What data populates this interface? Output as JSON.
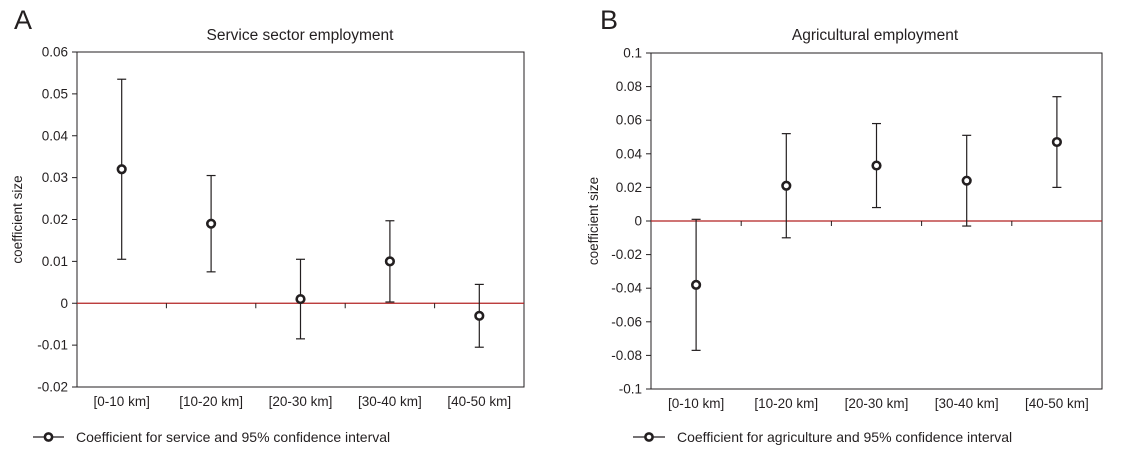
{
  "colors": {
    "zero_line": "#b22222",
    "ink": "#231f20"
  },
  "chart_data": [
    {
      "panel": "A",
      "type": "scatter",
      "title": "Service sector employment",
      "xlabel": "",
      "ylabel": "coefficient size",
      "categories": [
        "[0-10 km]",
        "[10-20 km]",
        "[20-30 km]",
        "[30-40 km]",
        "[40-50 km]"
      ],
      "ylim": [
        -0.02,
        0.06
      ],
      "yticks": [
        "0.06",
        "0.05",
        "0.04",
        "0.03",
        "0.02",
        "0.01",
        "0",
        "-0.01",
        "-0.02"
      ],
      "series": [
        {
          "name": "Coefficient for service and 95% confidence interval",
          "values": [
            0.032,
            0.019,
            0.001,
            0.01,
            -0.003
          ],
          "ci_low": [
            0.0105,
            0.0075,
            -0.0085,
            0.0003,
            -0.0105
          ],
          "ci_high": [
            0.0535,
            0.0305,
            0.0105,
            0.0197,
            0.0045
          ]
        }
      ],
      "grid": false,
      "legend": "bottom"
    },
    {
      "panel": "B",
      "type": "scatter",
      "title": "Agricultural employment",
      "xlabel": "",
      "ylabel": "coefficient size",
      "categories": [
        "[0-10 km]",
        "[10-20 km]",
        "[20-30 km]",
        "[30-40 km]",
        "[40-50 km]"
      ],
      "ylim": [
        -0.1,
        0.1
      ],
      "yticks": [
        "0.1",
        "0.08",
        "0.06",
        "0.04",
        "0.02",
        "0",
        "-0.02",
        "-0.04",
        "-0.06",
        "-0.08",
        "-0.1"
      ],
      "series": [
        {
          "name": "Coefficient for agriculture and 95% confidence interval",
          "values": [
            -0.038,
            0.021,
            0.033,
            0.024,
            0.047
          ],
          "ci_low": [
            -0.077,
            -0.01,
            0.008,
            -0.003,
            0.02
          ],
          "ci_high": [
            0.001,
            0.052,
            0.058,
            0.051,
            0.074
          ]
        }
      ],
      "grid": false,
      "legend": "bottom"
    }
  ]
}
